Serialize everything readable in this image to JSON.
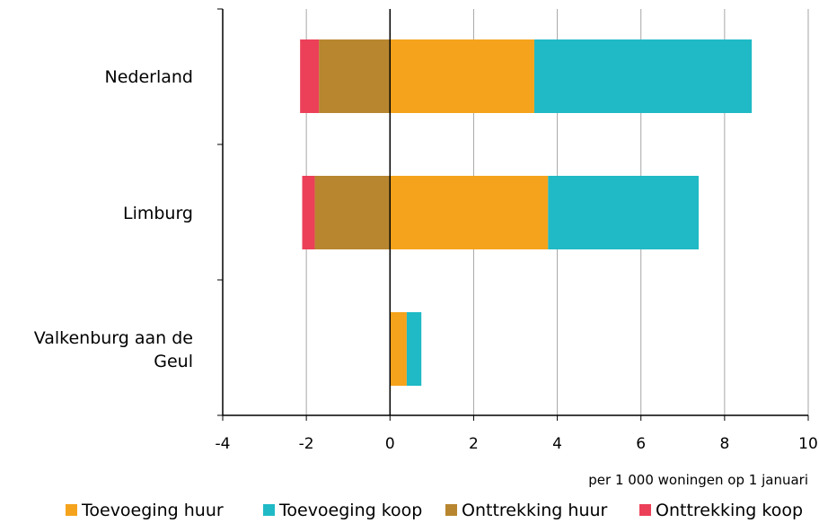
{
  "chart_data": {
    "type": "bar",
    "orientation": "horizontal",
    "stacked": true,
    "categories": [
      [
        "Nederland"
      ],
      [
        "Limburg"
      ],
      [
        "Valkenburg aan de",
        "Geul"
      ]
    ],
    "series": [
      {
        "name": "Toevoeging huur",
        "color": "#f5a31c",
        "values": [
          3.45,
          3.78,
          0.4
        ]
      },
      {
        "name": "Toevoeging koop",
        "color": "#1fbac5",
        "values": [
          5.2,
          3.6,
          0.35
        ]
      },
      {
        "name": "Onttrekking huur",
        "color": "#b7862f",
        "values": [
          -1.7,
          -1.8,
          0
        ]
      },
      {
        "name": "Onttrekking koop",
        "color": "#ec4059",
        "values": [
          -0.45,
          -0.3,
          0
        ]
      }
    ],
    "xlim": [
      -4,
      10
    ],
    "xticks": [
      "-4",
      "-2",
      "0",
      "2",
      "4",
      "6",
      "8",
      "10"
    ],
    "xlabel": "per 1 000 woningen op 1 januari",
    "grid": "vertical",
    "legend_position": "bottom"
  }
}
